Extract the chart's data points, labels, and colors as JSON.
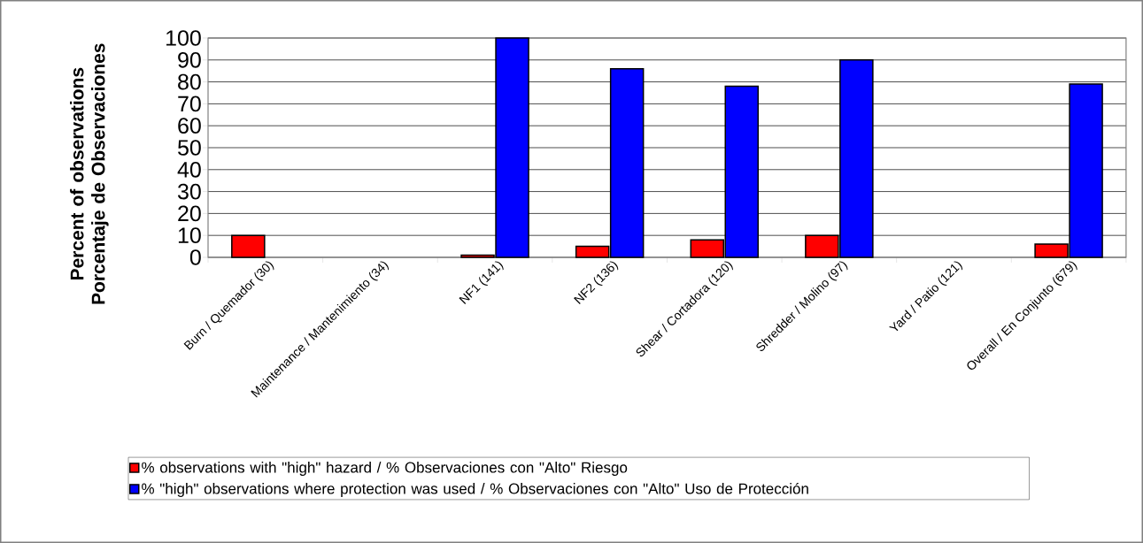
{
  "chart_data": {
    "type": "bar",
    "ylabel": "Percent of observations\nPorcentaje de Observaciones",
    "categories": [
      "Burn / Quemador  (30)",
      "Maintenance / Mantenimiento  (34)",
      "NF1 (141)",
      "NF2 (136)",
      "Shear / Cortadora (120)",
      "Shredder / Molino  (97)",
      "Yard / Patio (121)",
      "Overall / En Conjunto  (679)"
    ],
    "series": [
      {
        "name": "% observations with \"high\" hazard / % Observaciones con \"Alto\" Riesgo",
        "color": "#ff0000",
        "values": [
          10,
          null,
          1,
          5,
          8,
          10,
          null,
          6
        ]
      },
      {
        "name": "% \"high\" observations where protection was used / % Observaciones con \"Alto\" Uso de Protección",
        "color": "#0000ff",
        "values": [
          null,
          null,
          100,
          86,
          78,
          90,
          null,
          79
        ]
      }
    ],
    "ylim": [
      0,
      100
    ],
    "yticks": [
      0,
      10,
      20,
      30,
      40,
      50,
      60,
      70,
      80,
      90,
      100
    ],
    "grid": "y",
    "legend": "bottom"
  }
}
